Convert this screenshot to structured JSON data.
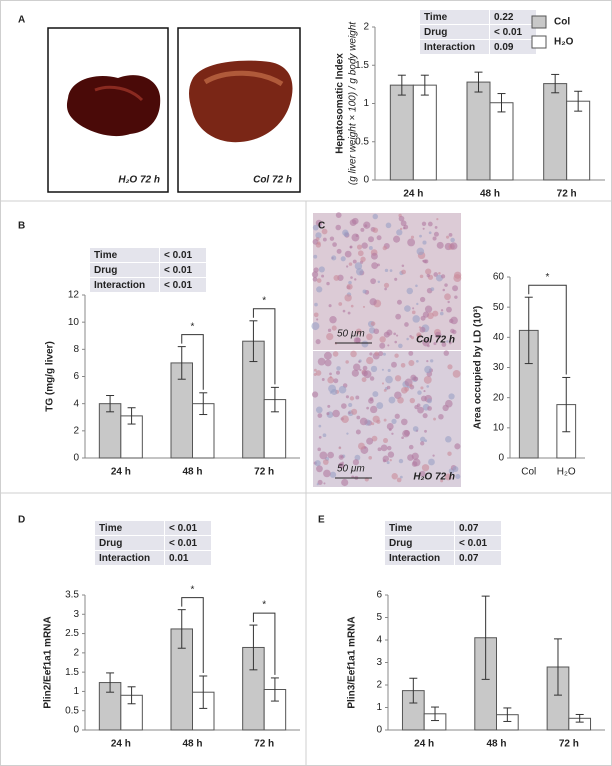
{
  "panel_labels": [
    "A",
    "B",
    "C",
    "D",
    "E"
  ],
  "image_labels": [
    "H₂O 72 h",
    "Col 72 h",
    "Col 72 h",
    "H₂O 72 h"
  ],
  "scale_labels": [
    "50 μm",
    "50 μm"
  ],
  "chart_data": [
    {
      "type": "bar",
      "ylabel": "Hepatosomatic Index",
      "ylabel_sub": "(g liver weight × 100) / g body weight",
      "categories": [
        "24 h",
        "48 h",
        "72 h"
      ],
      "series": [
        {
          "name": "Col",
          "color": "#c8c8c8",
          "values": [
            1.24,
            1.28,
            1.26
          ],
          "errors": [
            0.13,
            0.13,
            0.12
          ]
        },
        {
          "name": "H₂O",
          "color": "#ffffff",
          "values": [
            1.24,
            1.01,
            1.03
          ],
          "errors": [
            0.13,
            0.12,
            0.13
          ]
        }
      ],
      "ylim": [
        0,
        2
      ],
      "yticks": [
        0,
        0.5,
        1,
        1.5,
        2
      ],
      "stats": [
        [
          "Time",
          "0.22"
        ],
        [
          "Drug",
          "< 0.01"
        ],
        [
          "Interaction",
          "0.09"
        ]
      ],
      "legend": "top-right"
    },
    {
      "type": "bar",
      "ylabel": "TG (mg/g liver)",
      "categories": [
        "24 h",
        "48 h",
        "72 h"
      ],
      "series": [
        {
          "color": "#c8c8c8",
          "values": [
            4.0,
            7.0,
            8.6
          ],
          "errors": [
            0.6,
            1.2,
            1.5
          ]
        },
        {
          "color": "#ffffff",
          "values": [
            3.1,
            4.0,
            4.3
          ],
          "errors": [
            0.6,
            0.8,
            0.9
          ]
        }
      ],
      "ylim": [
        0,
        12
      ],
      "yticks": [
        0,
        2,
        4,
        6,
        8,
        10,
        12
      ],
      "stats": [
        [
          "Time",
          "< 0.01"
        ],
        [
          "Drug",
          "< 0.01"
        ],
        [
          "Interaction",
          "< 0.01"
        ]
      ],
      "significance": [
        {
          "category": "48 h",
          "label": "*"
        },
        {
          "category": "72 h",
          "label": "*"
        }
      ]
    },
    {
      "type": "bar",
      "ylabel": "Area occupied by LD (10³)",
      "categories": [
        "Col",
        "H₂O"
      ],
      "values": [
        42.3,
        17.7
      ],
      "errors": [
        11,
        9
      ],
      "colors": [
        "#c8c8c8",
        "#ffffff"
      ],
      "ylim": [
        0,
        60
      ],
      "yticks": [
        0,
        10,
        20,
        30,
        40,
        50,
        60
      ],
      "significance": [
        {
          "from": "Col",
          "to": "H₂O",
          "label": "*"
        }
      ]
    },
    {
      "type": "bar",
      "ylabel": "Plin2/Eef1a1 mRNA",
      "categories": [
        "24 h",
        "48 h",
        "72 h"
      ],
      "series": [
        {
          "color": "#c8c8c8",
          "values": [
            1.23,
            2.62,
            2.14
          ],
          "errors": [
            0.25,
            0.5,
            0.58
          ]
        },
        {
          "color": "#ffffff",
          "values": [
            0.9,
            0.98,
            1.05
          ],
          "errors": [
            0.22,
            0.42,
            0.3
          ]
        }
      ],
      "ylim": [
        0,
        3.5
      ],
      "yticks": [
        0,
        0.5,
        1,
        1.5,
        2,
        2.5,
        3,
        3.5
      ],
      "stats": [
        [
          "Time",
          "< 0.01"
        ],
        [
          "Drug",
          "< 0.01"
        ],
        [
          "Interaction",
          "0.01"
        ]
      ],
      "significance": [
        {
          "category": "48 h",
          "label": "*"
        },
        {
          "category": "72 h",
          "label": "*"
        }
      ]
    },
    {
      "type": "bar",
      "ylabel": "Plin3/Eef1a1 mRNA",
      "categories": [
        "24 h",
        "48 h",
        "72 h"
      ],
      "series": [
        {
          "color": "#c8c8c8",
          "values": [
            1.75,
            4.1,
            2.8
          ],
          "errors": [
            0.55,
            1.85,
            1.25
          ]
        },
        {
          "color": "#ffffff",
          "values": [
            0.72,
            0.68,
            0.52
          ],
          "errors": [
            0.3,
            0.3,
            0.17
          ]
        }
      ],
      "ylim": [
        0,
        6
      ],
      "yticks": [
        0,
        1,
        2,
        3,
        4,
        5,
        6
      ],
      "stats": [
        [
          "Time",
          "0.07"
        ],
        [
          "Drug",
          "< 0.01"
        ],
        [
          "Interaction",
          "0.07"
        ]
      ]
    }
  ]
}
